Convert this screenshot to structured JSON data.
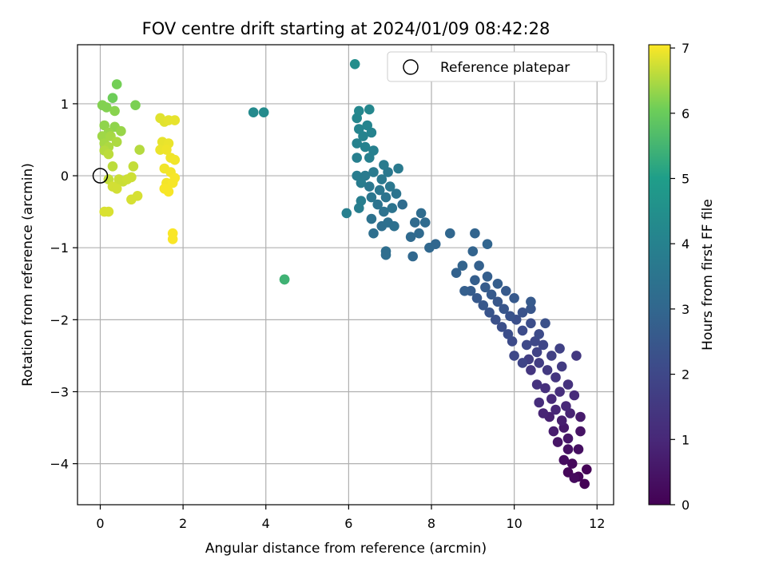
{
  "chart_data": {
    "type": "scatter",
    "title": "FOV centre drift starting at 2024/01/09 08:42:28",
    "xlabel": "Angular distance from reference (arcmin)",
    "ylabel": "Rotation from reference (arcmin)",
    "xlim": [
      -0.55,
      12.4
    ],
    "ylim": [
      -4.57,
      1.82
    ],
    "xticks": [
      0,
      2,
      4,
      6,
      8,
      10,
      12
    ],
    "yticks": [
      -4,
      -3,
      -2,
      -1,
      0,
      1
    ],
    "grid": true,
    "legend": {
      "location": "top-right",
      "entries": [
        "Reference platepar"
      ]
    },
    "colorbar": {
      "label": "Hours from first FF file",
      "range": [
        0,
        7.05
      ],
      "ticks": [
        0,
        1,
        2,
        3,
        4,
        5,
        6,
        7
      ],
      "colormap": "viridis"
    },
    "reference_marker": {
      "x": 0.0,
      "y": 0.0
    },
    "series": [
      {
        "points": [
          [
            11.7,
            -4.28,
            0.02
          ],
          [
            11.75,
            -4.08,
            0.05
          ],
          [
            11.55,
            -4.18,
            0.1
          ],
          [
            11.3,
            -4.12,
            0.15
          ],
          [
            11.4,
            -4.0,
            0.2
          ],
          [
            11.45,
            -4.2,
            0.25
          ],
          [
            11.2,
            -3.95,
            0.3
          ],
          [
            11.55,
            -3.8,
            0.35
          ],
          [
            11.3,
            -3.8,
            0.4
          ],
          [
            11.6,
            -3.55,
            0.45
          ],
          [
            11.05,
            -3.7,
            0.5
          ],
          [
            11.3,
            -3.65,
            0.55
          ],
          [
            11.2,
            -3.5,
            0.6
          ],
          [
            11.6,
            -3.35,
            0.65
          ],
          [
            10.95,
            -3.55,
            0.7
          ],
          [
            11.15,
            -3.4,
            0.75
          ],
          [
            10.85,
            -3.35,
            0.8
          ],
          [
            11.35,
            -3.3,
            0.85
          ],
          [
            10.7,
            -3.3,
            0.9
          ],
          [
            11.0,
            -3.25,
            0.95
          ],
          [
            11.25,
            -3.2,
            1.0
          ],
          [
            10.9,
            -3.1,
            1.05
          ],
          [
            11.45,
            -3.05,
            1.1
          ],
          [
            10.6,
            -3.15,
            1.15
          ],
          [
            11.1,
            -3.0,
            1.2
          ],
          [
            10.75,
            -2.95,
            1.25
          ],
          [
            11.3,
            -2.9,
            1.3
          ],
          [
            10.55,
            -2.9,
            1.35
          ],
          [
            11.0,
            -2.8,
            1.4
          ],
          [
            10.4,
            -2.7,
            1.45
          ],
          [
            11.5,
            -2.5,
            1.5
          ],
          [
            10.8,
            -2.7,
            1.55
          ],
          [
            11.15,
            -2.65,
            1.6
          ],
          [
            10.6,
            -2.6,
            1.65
          ],
          [
            10.35,
            -2.55,
            1.7
          ],
          [
            10.9,
            -2.5,
            1.75
          ],
          [
            11.1,
            -2.4,
            1.8
          ],
          [
            10.55,
            -2.45,
            1.85
          ],
          [
            10.2,
            -2.6,
            1.9
          ],
          [
            10.7,
            -2.35,
            1.95
          ],
          [
            10.0,
            -2.5,
            2.0
          ],
          [
            10.5,
            -2.3,
            2.0
          ],
          [
            10.3,
            -2.35,
            2.05
          ],
          [
            9.95,
            -2.3,
            2.1
          ],
          [
            10.6,
            -2.2,
            2.1
          ],
          [
            10.2,
            -2.15,
            2.15
          ],
          [
            9.85,
            -2.2,
            2.2
          ],
          [
            10.4,
            -2.05,
            2.2
          ],
          [
            9.7,
            -2.1,
            2.25
          ],
          [
            10.05,
            -2.0,
            2.25
          ],
          [
            10.75,
            -2.05,
            2.3
          ],
          [
            9.55,
            -2.0,
            2.3
          ],
          [
            9.9,
            -1.95,
            2.35
          ],
          [
            10.2,
            -1.9,
            2.35
          ],
          [
            9.4,
            -1.9,
            2.4
          ],
          [
            9.75,
            -1.85,
            2.45
          ],
          [
            10.4,
            -1.85,
            2.45
          ],
          [
            9.25,
            -1.8,
            2.5
          ],
          [
            9.6,
            -1.75,
            2.5
          ],
          [
            10.0,
            -1.7,
            2.55
          ],
          [
            9.1,
            -1.7,
            2.55
          ],
          [
            9.45,
            -1.65,
            2.6
          ],
          [
            9.8,
            -1.6,
            2.6
          ],
          [
            8.95,
            -1.6,
            2.65
          ],
          [
            9.3,
            -1.55,
            2.65
          ],
          [
            9.6,
            -1.5,
            2.7
          ],
          [
            9.05,
            -1.45,
            2.7
          ],
          [
            9.35,
            -1.4,
            2.75
          ],
          [
            8.8,
            -1.6,
            2.75
          ],
          [
            10.4,
            -1.75,
            2.6
          ],
          [
            9.15,
            -1.25,
            2.8
          ],
          [
            8.6,
            -1.35,
            2.85
          ],
          [
            8.75,
            -1.25,
            2.9
          ],
          [
            9.0,
            -1.05,
            2.9
          ],
          [
            9.35,
            -0.95,
            2.95
          ],
          [
            9.05,
            -0.8,
            2.95
          ],
          [
            8.45,
            -0.8,
            3.0
          ],
          [
            8.1,
            -0.95,
            3.0
          ],
          [
            7.95,
            -1.0,
            3.05
          ],
          [
            7.55,
            -1.12,
            3.05
          ],
          [
            7.5,
            -0.85,
            3.1
          ],
          [
            7.7,
            -0.8,
            3.1
          ],
          [
            7.6,
            -0.65,
            3.15
          ],
          [
            7.85,
            -0.65,
            3.15
          ],
          [
            7.75,
            -0.52,
            3.2
          ],
          [
            7.3,
            -0.4,
            3.2
          ],
          [
            6.9,
            -1.05,
            3.25
          ],
          [
            6.9,
            -1.1,
            3.25
          ],
          [
            6.6,
            -0.8,
            3.3
          ],
          [
            6.8,
            -0.7,
            3.3
          ],
          [
            6.95,
            -0.65,
            3.35
          ],
          [
            7.1,
            -0.7,
            3.35
          ],
          [
            6.55,
            -0.6,
            3.4
          ],
          [
            6.85,
            -0.5,
            3.4
          ],
          [
            7.05,
            -0.45,
            3.45
          ],
          [
            6.7,
            -0.4,
            3.45
          ],
          [
            6.9,
            -0.3,
            3.5
          ],
          [
            7.15,
            -0.25,
            3.5
          ],
          [
            6.55,
            -0.3,
            3.55
          ],
          [
            6.75,
            -0.2,
            3.55
          ],
          [
            7.0,
            -0.15,
            3.6
          ],
          [
            6.5,
            -0.15,
            3.6
          ],
          [
            6.8,
            -0.05,
            3.65
          ],
          [
            6.95,
            0.05,
            3.65
          ],
          [
            7.2,
            0.1,
            3.7
          ],
          [
            6.6,
            0.05,
            3.7
          ],
          [
            6.85,
            0.15,
            3.75
          ],
          [
            6.4,
            0.0,
            3.75
          ],
          [
            6.2,
            0.0,
            3.8
          ],
          [
            6.3,
            -0.1,
            3.8
          ],
          [
            6.25,
            -0.45,
            3.85
          ],
          [
            6.3,
            -0.35,
            3.85
          ],
          [
            5.95,
            -0.52,
            3.9
          ],
          [
            6.2,
            0.25,
            3.9
          ],
          [
            6.5,
            0.25,
            3.95
          ],
          [
            6.6,
            0.35,
            3.95
          ],
          [
            6.4,
            0.4,
            4.0
          ],
          [
            6.2,
            0.45,
            4.0
          ],
          [
            6.35,
            0.55,
            4.05
          ],
          [
            6.55,
            0.6,
            4.05
          ],
          [
            6.25,
            0.65,
            4.1
          ],
          [
            6.45,
            0.7,
            4.1
          ],
          [
            6.2,
            0.8,
            4.15
          ],
          [
            6.5,
            0.92,
            4.2
          ],
          [
            6.25,
            0.9,
            4.2
          ],
          [
            3.7,
            0.88,
            4.3
          ],
          [
            3.95,
            0.88,
            4.35
          ],
          [
            6.15,
            1.55,
            4.45
          ],
          [
            4.45,
            -1.44,
            5.4
          ],
          [
            4.45,
            -1.44,
            5.45
          ],
          [
            0.3,
            1.08,
            6.05
          ],
          [
            0.4,
            1.27,
            6.1
          ],
          [
            0.85,
            0.98,
            6.15
          ],
          [
            0.05,
            0.98,
            6.2
          ],
          [
            0.15,
            0.95,
            6.2
          ],
          [
            0.35,
            0.9,
            6.25
          ],
          [
            0.1,
            0.7,
            6.3
          ],
          [
            0.35,
            0.68,
            6.3
          ],
          [
            0.2,
            0.6,
            6.35
          ],
          [
            0.5,
            0.62,
            6.35
          ],
          [
            0.05,
            0.55,
            6.4
          ],
          [
            0.25,
            0.55,
            6.45
          ],
          [
            0.1,
            0.45,
            6.45
          ],
          [
            0.4,
            0.47,
            6.5
          ],
          [
            0.2,
            0.4,
            6.5
          ],
          [
            0.95,
            0.36,
            6.55
          ],
          [
            0.1,
            0.35,
            6.55
          ],
          [
            0.2,
            0.3,
            6.6
          ],
          [
            0.3,
            0.13,
            6.6
          ],
          [
            0.8,
            0.13,
            6.65
          ],
          [
            0.2,
            -0.05,
            6.65
          ],
          [
            0.45,
            -0.05,
            6.7
          ],
          [
            0.55,
            -0.08,
            6.7
          ],
          [
            0.65,
            -0.05,
            6.72
          ],
          [
            0.75,
            -0.02,
            6.72
          ],
          [
            0.3,
            -0.15,
            6.75
          ],
          [
            0.4,
            -0.18,
            6.75
          ],
          [
            0.9,
            -0.28,
            6.78
          ],
          [
            0.75,
            -0.33,
            6.78
          ],
          [
            0.1,
            -0.5,
            6.8
          ],
          [
            0.2,
            -0.5,
            6.8
          ],
          [
            1.45,
            0.8,
            6.85
          ],
          [
            1.55,
            0.75,
            6.85
          ],
          [
            1.65,
            0.77,
            6.88
          ],
          [
            1.8,
            0.77,
            6.9
          ],
          [
            1.5,
            0.47,
            6.9
          ],
          [
            1.65,
            0.45,
            6.92
          ],
          [
            1.45,
            0.36,
            6.92
          ],
          [
            1.6,
            0.36,
            6.95
          ],
          [
            1.7,
            0.25,
            6.95
          ],
          [
            1.8,
            0.22,
            6.97
          ],
          [
            1.55,
            0.1,
            6.97
          ],
          [
            1.7,
            0.05,
            6.98
          ],
          [
            1.6,
            -0.1,
            6.98
          ],
          [
            1.75,
            -0.1,
            7.0
          ],
          [
            1.8,
            -0.03,
            7.0
          ],
          [
            1.55,
            -0.18,
            7.01
          ],
          [
            1.65,
            -0.22,
            7.01
          ],
          [
            1.75,
            -0.8,
            7.02
          ],
          [
            1.75,
            -0.88,
            7.02
          ]
        ]
      }
    ]
  }
}
